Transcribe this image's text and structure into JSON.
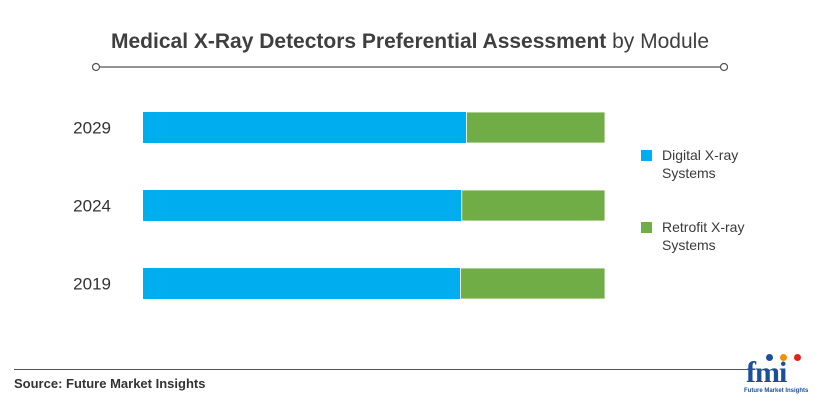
{
  "header": {
    "title_bold": "Medical X-Ray Detectors Preferential Assessment",
    "title_rest": "by Module"
  },
  "chart_data": {
    "type": "bar",
    "orientation": "horizontal",
    "stacked": true,
    "normalized": true,
    "categories": [
      "2029",
      "2024",
      "2019"
    ],
    "series": [
      {
        "name": "Digital X-ray Systems",
        "color": "#00aeef",
        "values": [
          70,
          69,
          68.7
        ]
      },
      {
        "name": "Retrofit X-ray Systems",
        "color": "#70ad47",
        "values": [
          30,
          31,
          31.3
        ]
      }
    ],
    "xlim": [
      0,
      100
    ],
    "grid": false,
    "legend_position": "right"
  },
  "legend": {
    "items": [
      {
        "label": "Digital X-ray Systems",
        "color": "#00aeef"
      },
      {
        "label": "Retrofit X-ray Systems",
        "color": "#70ad47"
      }
    ]
  },
  "footer": {
    "source_label": "Source:",
    "source_text": "Future Market Insights"
  },
  "logo": {
    "wordmark": "fmi",
    "tagline": "Future Market Insights"
  }
}
